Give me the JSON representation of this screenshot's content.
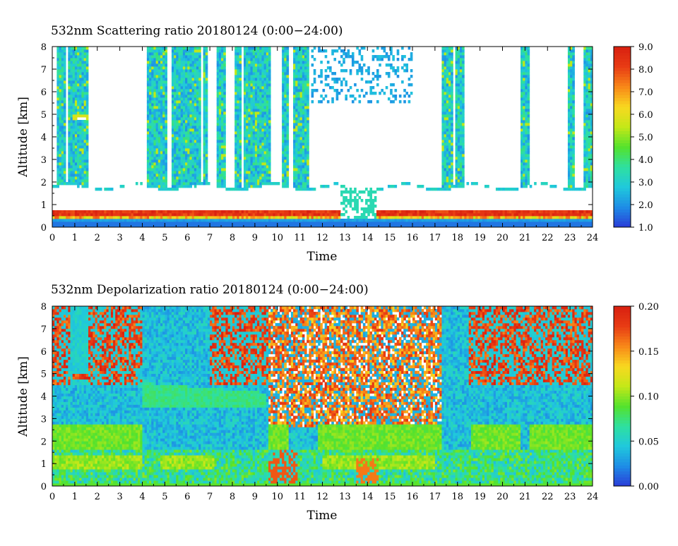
{
  "chart_data": [
    {
      "type": "heatmap",
      "title": "532nm Scattering ratio  20180124 (0:00−24:00)",
      "xlabel": "Time",
      "ylabel": "Altitude [km]",
      "xlim": [
        0,
        24
      ],
      "ylim": [
        0,
        8
      ],
      "x_ticks": [
        "0",
        "1",
        "2",
        "3",
        "4",
        "5",
        "6",
        "7",
        "8",
        "9",
        "10",
        "11",
        "12",
        "13",
        "14",
        "15",
        "16",
        "17",
        "18",
        "19",
        "20",
        "21",
        "22",
        "23",
        "24"
      ],
      "y_ticks": [
        "0",
        "1",
        "2",
        "3",
        "4",
        "5",
        "6",
        "7",
        "8"
      ],
      "colorbar": {
        "range": [
          1.0,
          9.0
        ],
        "tick_labels": [
          "1.0",
          "2.0",
          "3.0",
          "4.0",
          "5.0",
          "6.0",
          "7.0",
          "8.0",
          "9.0"
        ],
        "colormap": [
          "#2a3cd8",
          "#1e8ce6",
          "#20c8dc",
          "#2ee0a0",
          "#54e22c",
          "#c4e818",
          "#f8d820",
          "#f88818",
          "#e83c14",
          "#d82010"
        ]
      },
      "features": {
        "cloud_columns_hours": [
          [
            0.25,
            0.55
          ],
          [
            0.75,
            1.65
          ],
          [
            4.25,
            4.55
          ],
          [
            4.6,
            5.1
          ],
          [
            5.3,
            6.6
          ],
          [
            6.7,
            6.95
          ],
          [
            7.3,
            7.65
          ],
          [
            8.05,
            8.35
          ],
          [
            8.5,
            8.75
          ],
          [
            8.85,
            9.7
          ],
          [
            10.2,
            10.45
          ],
          [
            10.75,
            11.15
          ],
          [
            11.25,
            11.45
          ],
          [
            17.35,
            17.75
          ],
          [
            17.9,
            18.25
          ],
          [
            20.85,
            21.15
          ],
          [
            22.95,
            23.2
          ],
          [
            23.6,
            24.0
          ]
        ],
        "boundary_layer_top_km": 1.8,
        "elevated_cloud": {
          "time_hours": [
            0.9,
            1.6
          ],
          "altitude_km": [
            4.7,
            5.0
          ]
        }
      }
    },
    {
      "type": "heatmap",
      "title": "532nm Depolarization ratio  20180124 (0:00−24:00)",
      "xlabel": "Time",
      "ylabel": "Altitude [km]",
      "xlim": [
        0,
        24
      ],
      "ylim": [
        0,
        8
      ],
      "x_ticks": [
        "0",
        "1",
        "2",
        "3",
        "4",
        "5",
        "6",
        "7",
        "8",
        "9",
        "10",
        "11",
        "12",
        "13",
        "14",
        "15",
        "16",
        "17",
        "18",
        "19",
        "20",
        "21",
        "22",
        "23",
        "24"
      ],
      "y_ticks": [
        "0",
        "1",
        "2",
        "3",
        "4",
        "5",
        "6",
        "7",
        "8"
      ],
      "colorbar": {
        "range": [
          0.0,
          0.2
        ],
        "tick_labels": [
          "0.00",
          "0.05",
          "0.10",
          "0.15",
          "0.20"
        ],
        "colormap": [
          "#2a3cd8",
          "#1e8ce6",
          "#20c8dc",
          "#2ee0a0",
          "#54e22c",
          "#c4e818",
          "#f8d820",
          "#f88818",
          "#e83c14",
          "#d82010"
        ]
      },
      "features": {
        "elevated_cloud": {
          "time_hours": [
            0.9,
            1.6
          ],
          "altitude_km": [
            4.7,
            4.95
          ]
        },
        "noisy_region_hours": [
          [
            9.6,
            17.3
          ]
        ],
        "aerosol_layer_km": [
          1.6,
          2.8
        ]
      }
    }
  ]
}
